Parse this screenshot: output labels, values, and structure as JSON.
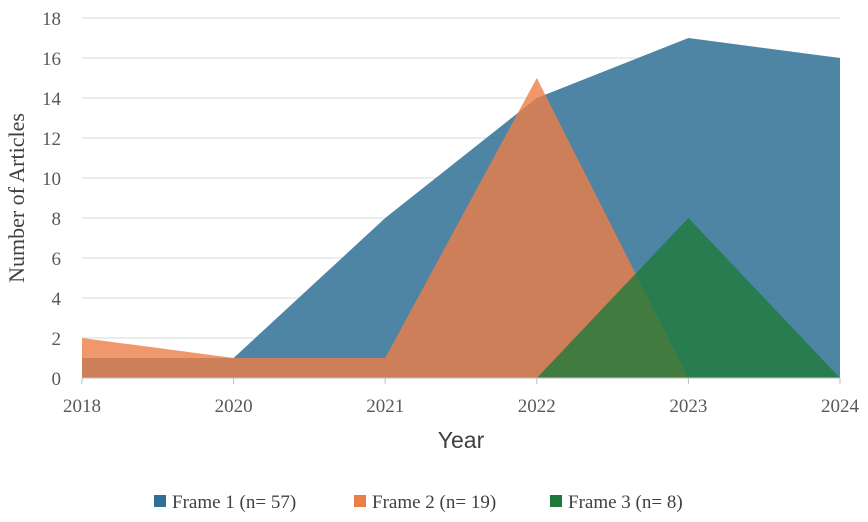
{
  "chart_data": {
    "type": "area",
    "x": [
      "2018",
      "2020",
      "2021",
      "2022",
      "2023",
      "2024"
    ],
    "series": [
      {
        "name": "Frame 1 (n= 57)",
        "values": [
          1,
          1,
          8,
          14,
          17,
          16
        ],
        "color": "#2F7094"
      },
      {
        "name": "Frame 2 (n= 19)",
        "values": [
          2,
          1,
          1,
          15,
          0,
          0
        ],
        "color": "#ED7D47"
      },
      {
        "name": "Frame 3 (n= 8)",
        "values": [
          0,
          0,
          0,
          0,
          8,
          0
        ],
        "color": "#1E7A3A"
      }
    ],
    "xlabel": "Year",
    "ylabel": "Number of Articles",
    "ylim": [
      0,
      18
    ],
    "yticks": [
      "0",
      "2",
      "4",
      "6",
      "8",
      "10",
      "12",
      "14",
      "16",
      "18"
    ],
    "grid": "horizontal",
    "legend_position": "bottom"
  }
}
